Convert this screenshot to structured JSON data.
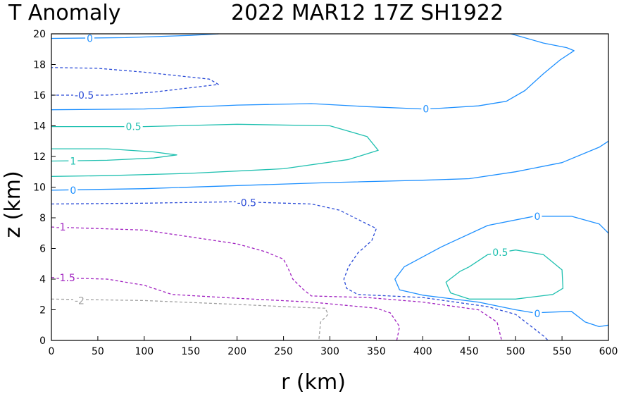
{
  "chart_data": {
    "type": "contour",
    "title_left": "T Anomaly",
    "title_right": "2022 MAR12 17Z   SH1922",
    "xlabel": "r (km)",
    "ylabel": "z (km)",
    "xlim": [
      0,
      600
    ],
    "ylim": [
      0,
      20
    ],
    "xticks": [
      "0",
      "50",
      "100",
      "150",
      "200",
      "250",
      "300",
      "350",
      "400",
      "450",
      "500",
      "550",
      "600"
    ],
    "yticks": [
      "0",
      "2",
      "4",
      "6",
      "8",
      "10",
      "12",
      "14",
      "16",
      "18",
      "20"
    ],
    "xtick_values": [
      0,
      50,
      100,
      150,
      200,
      250,
      300,
      350,
      400,
      450,
      500,
      550,
      600
    ],
    "ytick_values": [
      0,
      2,
      4,
      6,
      8,
      10,
      12,
      14,
      16,
      18,
      20
    ],
    "colors": {
      "0": "#1e90ff",
      "0.5": "#20c0b0",
      "1": "#20c0b0",
      "-0.5": "#2a4bd7",
      "-1": "#a020c0",
      "-1.5": "#a020c0",
      "-2": "#a0a0a0"
    },
    "contours": [
      {
        "level": "0",
        "label": "0",
        "label_at": [
          38,
          19.7
        ],
        "points": [
          [
            0,
            19.7
          ],
          [
            80,
            19.75
          ],
          [
            150,
            19.9
          ],
          [
            180,
            20
          ]
        ]
      },
      {
        "level": "0",
        "label": "0",
        "points": [
          [
            495,
            20
          ],
          [
            530,
            19.4
          ],
          [
            555,
            19.1
          ],
          [
            563,
            18.9
          ],
          [
            548,
            18.3
          ],
          [
            530,
            17.4
          ],
          [
            510,
            16.3
          ],
          [
            490,
            15.6
          ],
          [
            460,
            15.3
          ],
          [
            420,
            15.15
          ],
          [
            400,
            15.1
          ],
          [
            340,
            15.25
          ],
          [
            280,
            15.45
          ],
          [
            200,
            15.35
          ],
          [
            100,
            15.1
          ],
          [
            0,
            15.05
          ]
        ],
        "label_at": [
          400,
          15.1
        ]
      },
      {
        "level": "-0.5",
        "label": "-0.5",
        "label_at": [
          25,
          16.0
        ],
        "dashed": true,
        "points": [
          [
            0,
            16.0
          ],
          [
            60,
            16.0
          ],
          [
            110,
            16.2
          ],
          [
            180,
            16.7
          ],
          [
            170,
            17.05
          ],
          [
            100,
            17.5
          ],
          [
            50,
            17.75
          ],
          [
            0,
            17.8
          ]
        ]
      },
      {
        "level": "0.5",
        "label": "0.5",
        "label_at": [
          80,
          13.95
        ],
        "points": [
          [
            0,
            13.95
          ],
          [
            100,
            13.95
          ],
          [
            200,
            14.1
          ],
          [
            300,
            14.0
          ],
          [
            340,
            13.3
          ],
          [
            352,
            12.4
          ],
          [
            320,
            11.8
          ],
          [
            250,
            11.2
          ],
          [
            150,
            10.9
          ],
          [
            60,
            10.75
          ],
          [
            0,
            10.7
          ]
        ]
      },
      {
        "level": "1",
        "label": "1",
        "label_at": [
          20,
          11.7
        ],
        "points": [
          [
            0,
            12.5
          ],
          [
            60,
            12.5
          ],
          [
            110,
            12.3
          ],
          [
            135,
            12.1
          ],
          [
            110,
            11.9
          ],
          [
            60,
            11.75
          ],
          [
            0,
            11.7
          ]
        ]
      },
      {
        "level": "0",
        "label": "0",
        "label_at": [
          20,
          9.8
        ],
        "points": [
          [
            0,
            9.8
          ],
          [
            100,
            9.9
          ],
          [
            200,
            10.1
          ],
          [
            300,
            10.3
          ],
          [
            400,
            10.45
          ],
          [
            450,
            10.55
          ],
          [
            500,
            11.0
          ],
          [
            550,
            11.6
          ],
          [
            590,
            12.6
          ],
          [
            600,
            13.0
          ]
        ]
      },
      {
        "level": "-0.5",
        "label": "-0.5",
        "label_at": [
          200,
          9.0
        ],
        "dashed": true,
        "points": [
          [
            0,
            8.9
          ],
          [
            100,
            8.95
          ],
          [
            200,
            9.05
          ],
          [
            280,
            8.9
          ],
          [
            310,
            8.5
          ],
          [
            340,
            7.6
          ],
          [
            350,
            7.3
          ],
          [
            345,
            6.5
          ],
          [
            330,
            5.7
          ],
          [
            320,
            4.8
          ],
          [
            315,
            4.0
          ],
          [
            318,
            3.4
          ],
          [
            330,
            3.0
          ],
          [
            400,
            2.8
          ],
          [
            470,
            2.2
          ],
          [
            500,
            1.7
          ],
          [
            530,
            0.3
          ],
          [
            535,
            0
          ]
        ]
      },
      {
        "level": "-1",
        "label": "-1",
        "label_at": [
          5,
          7.4
        ],
        "dashed": true,
        "points": [
          [
            0,
            7.4
          ],
          [
            100,
            7.2
          ],
          [
            200,
            6.3
          ],
          [
            230,
            5.8
          ],
          [
            250,
            5.3
          ],
          [
            255,
            4.7
          ],
          [
            260,
            4.0
          ],
          [
            270,
            3.4
          ],
          [
            280,
            2.9
          ],
          [
            340,
            2.8
          ],
          [
            400,
            2.5
          ],
          [
            460,
            2.0
          ],
          [
            480,
            1.2
          ],
          [
            485,
            0
          ]
        ]
      },
      {
        "level": "-1.5",
        "label": "-1.5",
        "label_at": [
          5,
          4.1
        ],
        "dashed": true,
        "points": [
          [
            0,
            4.1
          ],
          [
            60,
            4.0
          ],
          [
            100,
            3.6
          ],
          [
            130,
            3.0
          ],
          [
            200,
            2.75
          ],
          [
            280,
            2.5
          ],
          [
            350,
            2.1
          ],
          [
            365,
            1.8
          ],
          [
            375,
            0.9
          ],
          [
            372,
            0
          ]
        ]
      },
      {
        "level": "-2",
        "label": "-2",
        "label_at": [
          25,
          2.6
        ],
        "dashed": true,
        "points": [
          [
            0,
            2.7
          ],
          [
            100,
            2.6
          ],
          [
            200,
            2.35
          ],
          [
            270,
            2.15
          ],
          [
            295,
            2.1
          ],
          [
            298,
            1.7
          ],
          [
            290,
            1.2
          ],
          [
            288,
            0
          ]
        ]
      },
      {
        "level": "0",
        "label": "0",
        "label_at": [
          520,
          8.1
        ],
        "points": [
          [
            600,
            7.0
          ],
          [
            590,
            7.6
          ],
          [
            560,
            8.1
          ],
          [
            520,
            8.1
          ],
          [
            470,
            7.5
          ],
          [
            420,
            6.1
          ],
          [
            380,
            4.8
          ],
          [
            370,
            4.0
          ],
          [
            375,
            3.3
          ],
          [
            400,
            2.95
          ],
          [
            460,
            2.5
          ],
          [
            500,
            2.0
          ],
          [
            520,
            1.8
          ],
          [
            560,
            1.9
          ],
          [
            575,
            1.2
          ],
          [
            590,
            0.9
          ],
          [
            600,
            1.0
          ]
        ]
      },
      {
        "level": "0",
        "label": "0",
        "label_at": [
          520,
          1.75
        ],
        "points": [
          [
            375,
            3.3
          ]
        ]
      },
      {
        "level": "0.5",
        "label": "0.5",
        "label_at": [
          475,
          5.75
        ],
        "points": [
          [
            450,
            4.8
          ],
          [
            470,
            5.6
          ],
          [
            500,
            5.9
          ],
          [
            530,
            5.6
          ],
          [
            550,
            4.6
          ],
          [
            551,
            3.4
          ],
          [
            540,
            3.0
          ],
          [
            500,
            2.7
          ],
          [
            450,
            2.7
          ],
          [
            430,
            3.1
          ],
          [
            425,
            3.8
          ],
          [
            440,
            4.5
          ],
          [
            450,
            4.8
          ]
        ]
      }
    ]
  }
}
